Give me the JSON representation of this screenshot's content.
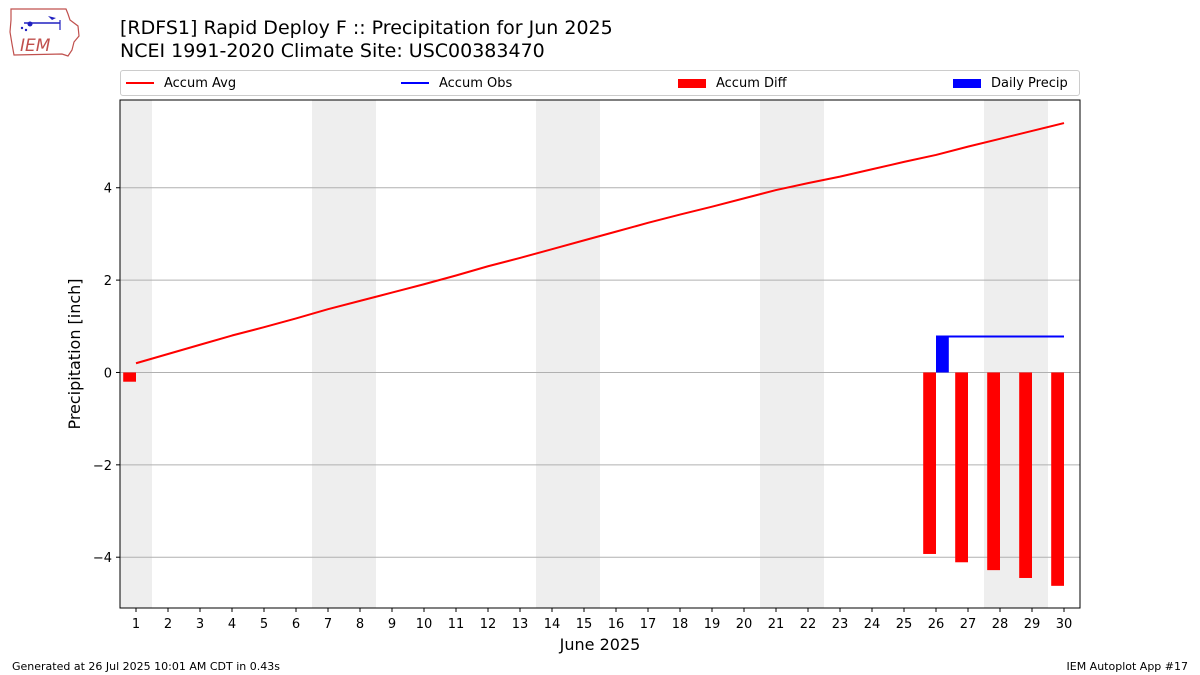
{
  "header": {
    "title_line1": "[RDFS1] Rapid Deploy F :: Precipitation for Jun 2025",
    "title_line2": "NCEI 1991-2020 Climate Site: USC00383470",
    "logo_text": "IEM"
  },
  "legend": {
    "accum_avg": "Accum Avg",
    "accum_obs": "Accum Obs",
    "accum_diff": "Accum Diff",
    "daily_precip": "Daily Precip"
  },
  "footer": {
    "generated": "Generated at 26 Jul 2025 10:01 AM CDT in 0.43s",
    "app": "IEM Autoplot App #17"
  },
  "colors": {
    "avg": "#ff0000",
    "obs": "#0000ff",
    "diff": "#ff0000",
    "daily": "#0000ff",
    "weekend_shade": "#eeeeee",
    "grid": "#b0b0b0"
  },
  "chart_data": {
    "type": "bar",
    "xlabel": "June 2025",
    "ylabel": "Precipitation [inch]",
    "xlim": [
      0.5,
      30.5
    ],
    "ylim": [
      -5.1,
      5.9
    ],
    "yticks": [
      4,
      2,
      0,
      -2,
      -4
    ],
    "ytick_labels": [
      "4",
      "2",
      "0",
      "−2",
      "−4"
    ],
    "days": [
      1,
      2,
      3,
      4,
      5,
      6,
      7,
      8,
      9,
      10,
      11,
      12,
      13,
      14,
      15,
      16,
      17,
      18,
      19,
      20,
      21,
      22,
      23,
      24,
      25,
      26,
      27,
      28,
      29,
      30
    ],
    "weekend_days": [
      1,
      7,
      8,
      14,
      15,
      21,
      22,
      28,
      29
    ],
    "legend_placement": "top (above plot)",
    "grid": "horizontal",
    "series": [
      {
        "name": "Accum Avg",
        "kind": "line",
        "days": [
          1,
          2,
          3,
          4,
          5,
          6,
          7,
          8,
          9,
          10,
          11,
          12,
          13,
          14,
          15,
          16,
          17,
          18,
          19,
          20,
          21,
          22,
          23,
          24,
          25,
          26,
          27,
          28,
          29,
          30
        ],
        "values": [
          0.2,
          0.4,
          0.6,
          0.8,
          0.98,
          1.17,
          1.37,
          1.55,
          1.73,
          1.91,
          2.1,
          2.3,
          2.48,
          2.67,
          2.86,
          3.05,
          3.24,
          3.42,
          3.59,
          3.77,
          3.95,
          4.1,
          4.24,
          4.4,
          4.56,
          4.71,
          4.89,
          5.06,
          5.23,
          5.4
        ]
      },
      {
        "name": "Accum Obs",
        "kind": "line",
        "days": [
          26,
          27,
          28,
          29,
          30
        ],
        "values": [
          0.78,
          0.78,
          0.78,
          0.78,
          0.78
        ]
      },
      {
        "name": "Accum Diff",
        "kind": "bar",
        "days": [
          1,
          26,
          27,
          28,
          29,
          30
        ],
        "values": [
          -0.2,
          -3.93,
          -4.11,
          -4.28,
          -4.45,
          -4.62
        ]
      },
      {
        "name": "Daily Precip",
        "kind": "bar",
        "days": [
          26
        ],
        "values": [
          0.78
        ]
      }
    ]
  }
}
